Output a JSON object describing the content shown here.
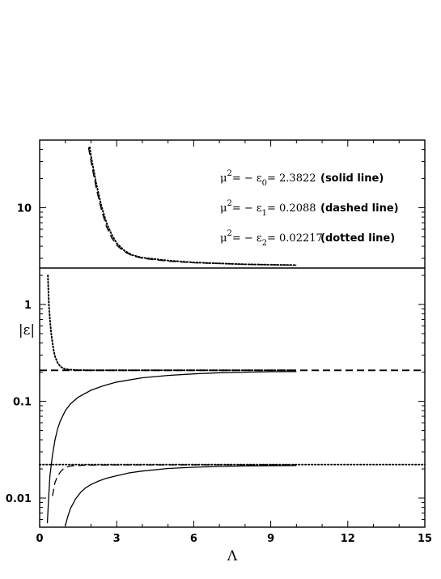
{
  "chart_data": {
    "type": "line",
    "xlabel": "Λ",
    "ylabel": "|ε|",
    "xlim": [
      0,
      15
    ],
    "ylim": [
      0.005,
      50
    ],
    "yscale": "log",
    "grid": false,
    "xticks": [
      0,
      3,
      6,
      9,
      12,
      15
    ],
    "yticks": [
      0.01,
      0.1,
      1,
      10
    ],
    "ytick_labels": [
      "0.01",
      "0.1",
      "1",
      "10"
    ],
    "annotations": [
      {
        "mu": "μ",
        "sup": "2",
        "eq": "= − ε",
        "sub": "0",
        "val": "= 2.3822",
        "desc": "(solid line)"
      },
      {
        "mu": "μ",
        "sup": "2",
        "eq": "= − ε",
        "sub": "1",
        "val": "= 0.2088",
        "desc": "(dashed line)"
      },
      {
        "mu": "μ",
        "sup": "2",
        "eq": "= − ε",
        "sub": "2",
        "val": "= 0.02217",
        "desc": "(dotted line)"
      }
    ],
    "reference_lines": [
      {
        "style": "solid",
        "y": 2.3822
      },
      {
        "style": "dashed",
        "y": 0.2088
      },
      {
        "style": "dotted",
        "y": 0.02217
      }
    ],
    "series": [
      {
        "style": "solid",
        "x": [
          0.3,
          0.35,
          0.4,
          0.5,
          0.6,
          0.7,
          0.8,
          1.0,
          1.2,
          1.5,
          2.0,
          2.5,
          3.0,
          4.0,
          5.0,
          6.0,
          7.0,
          8.0,
          9.0,
          10.0
        ],
        "y": [
          0.0055,
          0.01,
          0.017,
          0.028,
          0.04,
          0.052,
          0.062,
          0.08,
          0.094,
          0.11,
          0.13,
          0.145,
          0.158,
          0.175,
          0.185,
          0.192,
          0.197,
          0.2,
          0.202,
          0.203
        ]
      },
      {
        "style": "solid",
        "x": [
          1.0,
          1.1,
          1.2,
          1.4,
          1.6,
          1.8,
          2.0,
          2.3,
          2.6,
          3.0,
          3.5,
          4.0,
          5.0,
          6.0,
          7.0,
          8.0,
          9.0,
          10.0
        ],
        "y": [
          0.0052,
          0.0065,
          0.0078,
          0.0098,
          0.0115,
          0.0128,
          0.0138,
          0.015,
          0.016,
          0.017,
          0.0182,
          0.019,
          0.0202,
          0.0208,
          0.0212,
          0.0215,
          0.0216,
          0.0217
        ]
      },
      {
        "style": "dashed",
        "x": [
          0.5,
          0.55,
          0.6,
          0.7,
          0.8,
          0.9,
          1.0,
          1.2,
          1.5,
          2.0,
          3.0,
          5.0,
          10.0
        ],
        "y": [
          0.0105,
          0.0125,
          0.0145,
          0.0168,
          0.0185,
          0.0198,
          0.0207,
          0.0214,
          0.0217,
          0.0219,
          0.022,
          0.022,
          0.0221
        ]
      },
      {
        "style": "dashed",
        "x": [
          1.9,
          2.0,
          2.2,
          2.4,
          2.6,
          2.8,
          3.0,
          3.3,
          3.6,
          4.0,
          5.0,
          6.0,
          8.0,
          10.0
        ],
        "y": [
          42,
          30,
          16,
          9.6,
          6.4,
          4.9,
          4.1,
          3.5,
          3.2,
          3.0,
          2.8,
          2.7,
          2.6,
          2.55
        ]
      },
      {
        "style": "dotted",
        "x": [
          1.95,
          2.0,
          2.2,
          2.4,
          2.6,
          2.8,
          3.0,
          3.3,
          3.6,
          4.0,
          5.0,
          6.0,
          8.0,
          10.0
        ],
        "y": [
          42,
          34,
          18,
          10.5,
          7.0,
          5.3,
          4.3,
          3.6,
          3.25,
          3.05,
          2.85,
          2.72,
          2.6,
          2.55
        ]
      },
      {
        "style": "dotted",
        "x": [
          0.32,
          0.34,
          0.36,
          0.4,
          0.45,
          0.5,
          0.55,
          0.6,
          0.7,
          0.8,
          0.9,
          1.0,
          1.2,
          1.5,
          2.0,
          3.0,
          5.0,
          10.0
        ],
        "y": [
          2.0,
          1.4,
          1.0,
          0.7,
          0.5,
          0.4,
          0.33,
          0.29,
          0.25,
          0.23,
          0.22,
          0.215,
          0.212,
          0.21,
          0.209,
          0.209,
          0.209,
          0.209
        ]
      }
    ]
  }
}
